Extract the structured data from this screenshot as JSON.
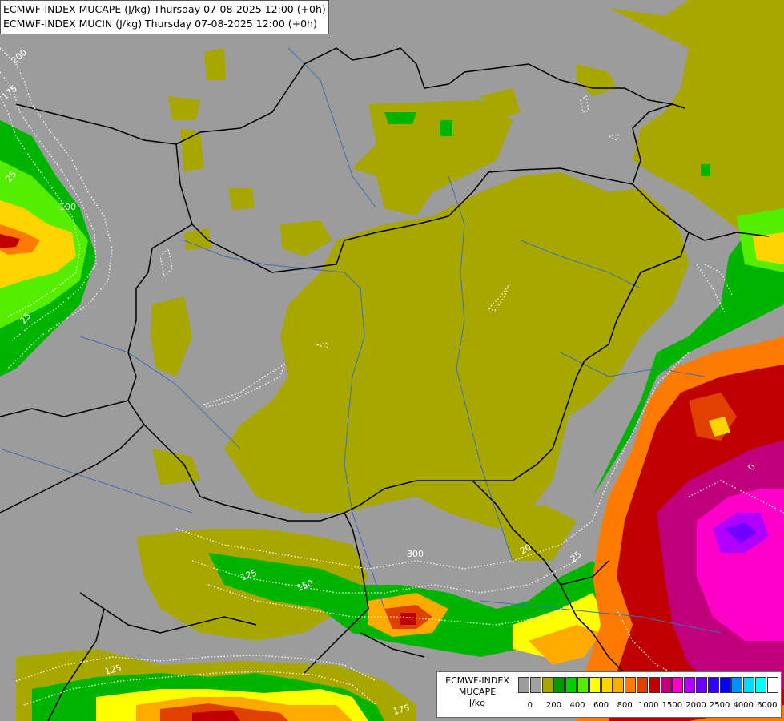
{
  "header": {
    "title_line_1": "ECMWF-INDEX MUCAPE (J/kg) Thursday 07-08-2025 12:00 (+0h)",
    "title_line_2": "ECMWF-INDEX MUCIN (J/kg) Thursday 07-08-2025 12:00 (+0h)"
  },
  "colors": {
    "background": "#9c9c9c",
    "olive_low_cape": "#a7a700",
    "border_lines": "#000000",
    "rivers": "#3d6fb5",
    "cin_contours": "#ffffff"
  },
  "map_labels": {
    "cin_200_nw": "200",
    "cin_175_nw": "175",
    "cin_25_w": "25",
    "cin_100_w": "100",
    "cin_25_w2": "25",
    "cin_300_s": "300",
    "cin_125_s": "125",
    "cin_150_s": "150",
    "cin_20_s": "20",
    "cin_125_sw": "125",
    "cin_175_sw": "175",
    "cin_0_e": "0",
    "cin_25_e": "25"
  },
  "legend": {
    "title_1": "ECMWF-INDEX",
    "title_2": "MUCAPE",
    "title_3": "J/kg",
    "colors": [
      "#9c9c9c",
      "#a0a0a0",
      "#a7a700",
      "#009a00",
      "#00d000",
      "#55ee00",
      "#ffff00",
      "#ffd400",
      "#ffaa00",
      "#ff7a00",
      "#e04000",
      "#c00000",
      "#c0007a",
      "#ff00c8",
      "#b000ff",
      "#7000ff",
      "#3000ff",
      "#0000ff",
      "#0090ff",
      "#00dcff",
      "#00ffff",
      "#ffffff"
    ],
    "tick_labels": [
      "0",
      "200",
      "400",
      "600",
      "800",
      "1000",
      "1500",
      "2000",
      "2500",
      "4000",
      "6000"
    ]
  }
}
